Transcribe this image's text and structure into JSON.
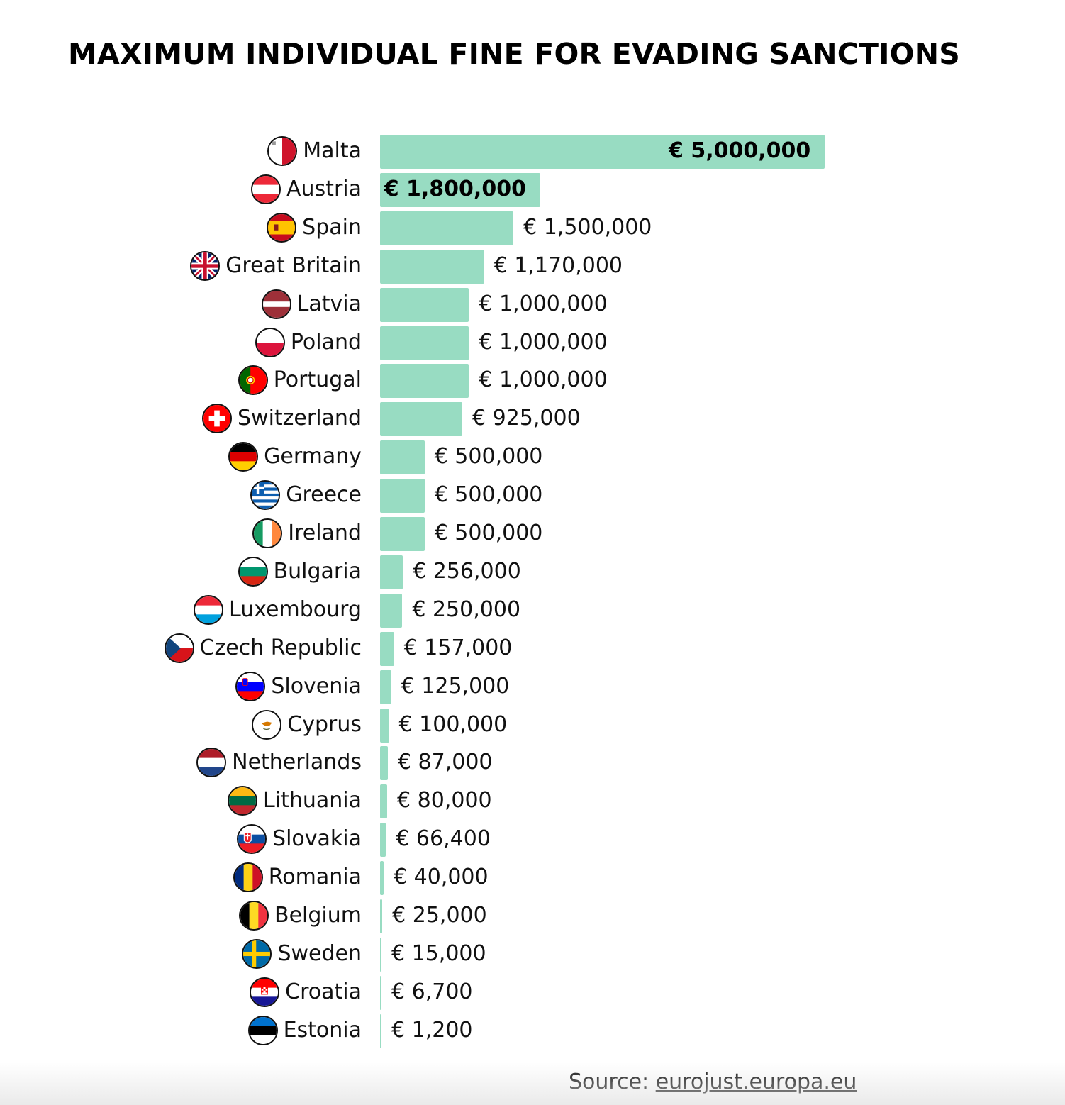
{
  "title": "MAXIMUM INDIVIDUAL FINE FOR EVADING SANCTIONS",
  "source": {
    "prefix": "Source: ",
    "link_text": "eurojust.europa.eu"
  },
  "colors": {
    "bar": "#98dcc2",
    "text": "#111111",
    "background": "#ffffff"
  },
  "chart_data": {
    "type": "bar",
    "orientation": "horizontal",
    "title": "MAXIMUM INDIVIDUAL FINE FOR EVADING SANCTIONS",
    "xlim": [
      0,
      5000000
    ],
    "grid": false,
    "categories": [
      "Malta",
      "Austria",
      "Spain",
      "Great Britain",
      "Latvia",
      "Poland",
      "Portugal",
      "Switzerland",
      "Germany",
      "Greece",
      "Ireland",
      "Bulgaria",
      "Luxembourg",
      "Czech Republic",
      "Slovenia",
      "Cyprus",
      "Netherlands",
      "Lithuania",
      "Slovakia",
      "Romania",
      "Belgium",
      "Sweden",
      "Croatia",
      "Estonia"
    ],
    "values": [
      5000000,
      1800000,
      1500000,
      1170000,
      1000000,
      1000000,
      1000000,
      925000,
      500000,
      500000,
      500000,
      256000,
      250000,
      157000,
      125000,
      100000,
      87000,
      80000,
      66400,
      40000,
      25000,
      15000,
      6700,
      1200
    ],
    "value_labels": [
      "€ 5,000,000",
      "€ 1,800,000",
      "€ 1,500,000",
      "€ 1,170,000",
      "€ 1,000,000",
      "€ 1,000,000",
      "€ 1,000,000",
      "€ 925,000",
      "€ 500,000",
      "€ 500,000",
      "€ 500,000",
      "€ 256,000",
      "€ 250,000",
      "€ 157,000",
      "€ 125,000",
      "€ 100,000",
      "€ 87,000",
      "€ 80,000",
      "€ 66,400",
      "€ 40,000",
      "€ 25,000",
      "€ 15,000",
      "€ 6,700",
      "€ 1,200"
    ],
    "flag_icons": [
      "malta-flag-icon",
      "austria-flag-icon",
      "spain-flag-icon",
      "great-britain-flag-icon",
      "latvia-flag-icon",
      "poland-flag-icon",
      "portugal-flag-icon",
      "switzerland-flag-icon",
      "germany-flag-icon",
      "greece-flag-icon",
      "ireland-flag-icon",
      "bulgaria-flag-icon",
      "luxembourg-flag-icon",
      "czech-republic-flag-icon",
      "slovenia-flag-icon",
      "cyprus-flag-icon",
      "netherlands-flag-icon",
      "lithuania-flag-icon",
      "slovakia-flag-icon",
      "romania-flag-icon",
      "belgium-flag-icon",
      "sweden-flag-icon",
      "croatia-flag-icon",
      "estonia-flag-icon"
    ]
  }
}
